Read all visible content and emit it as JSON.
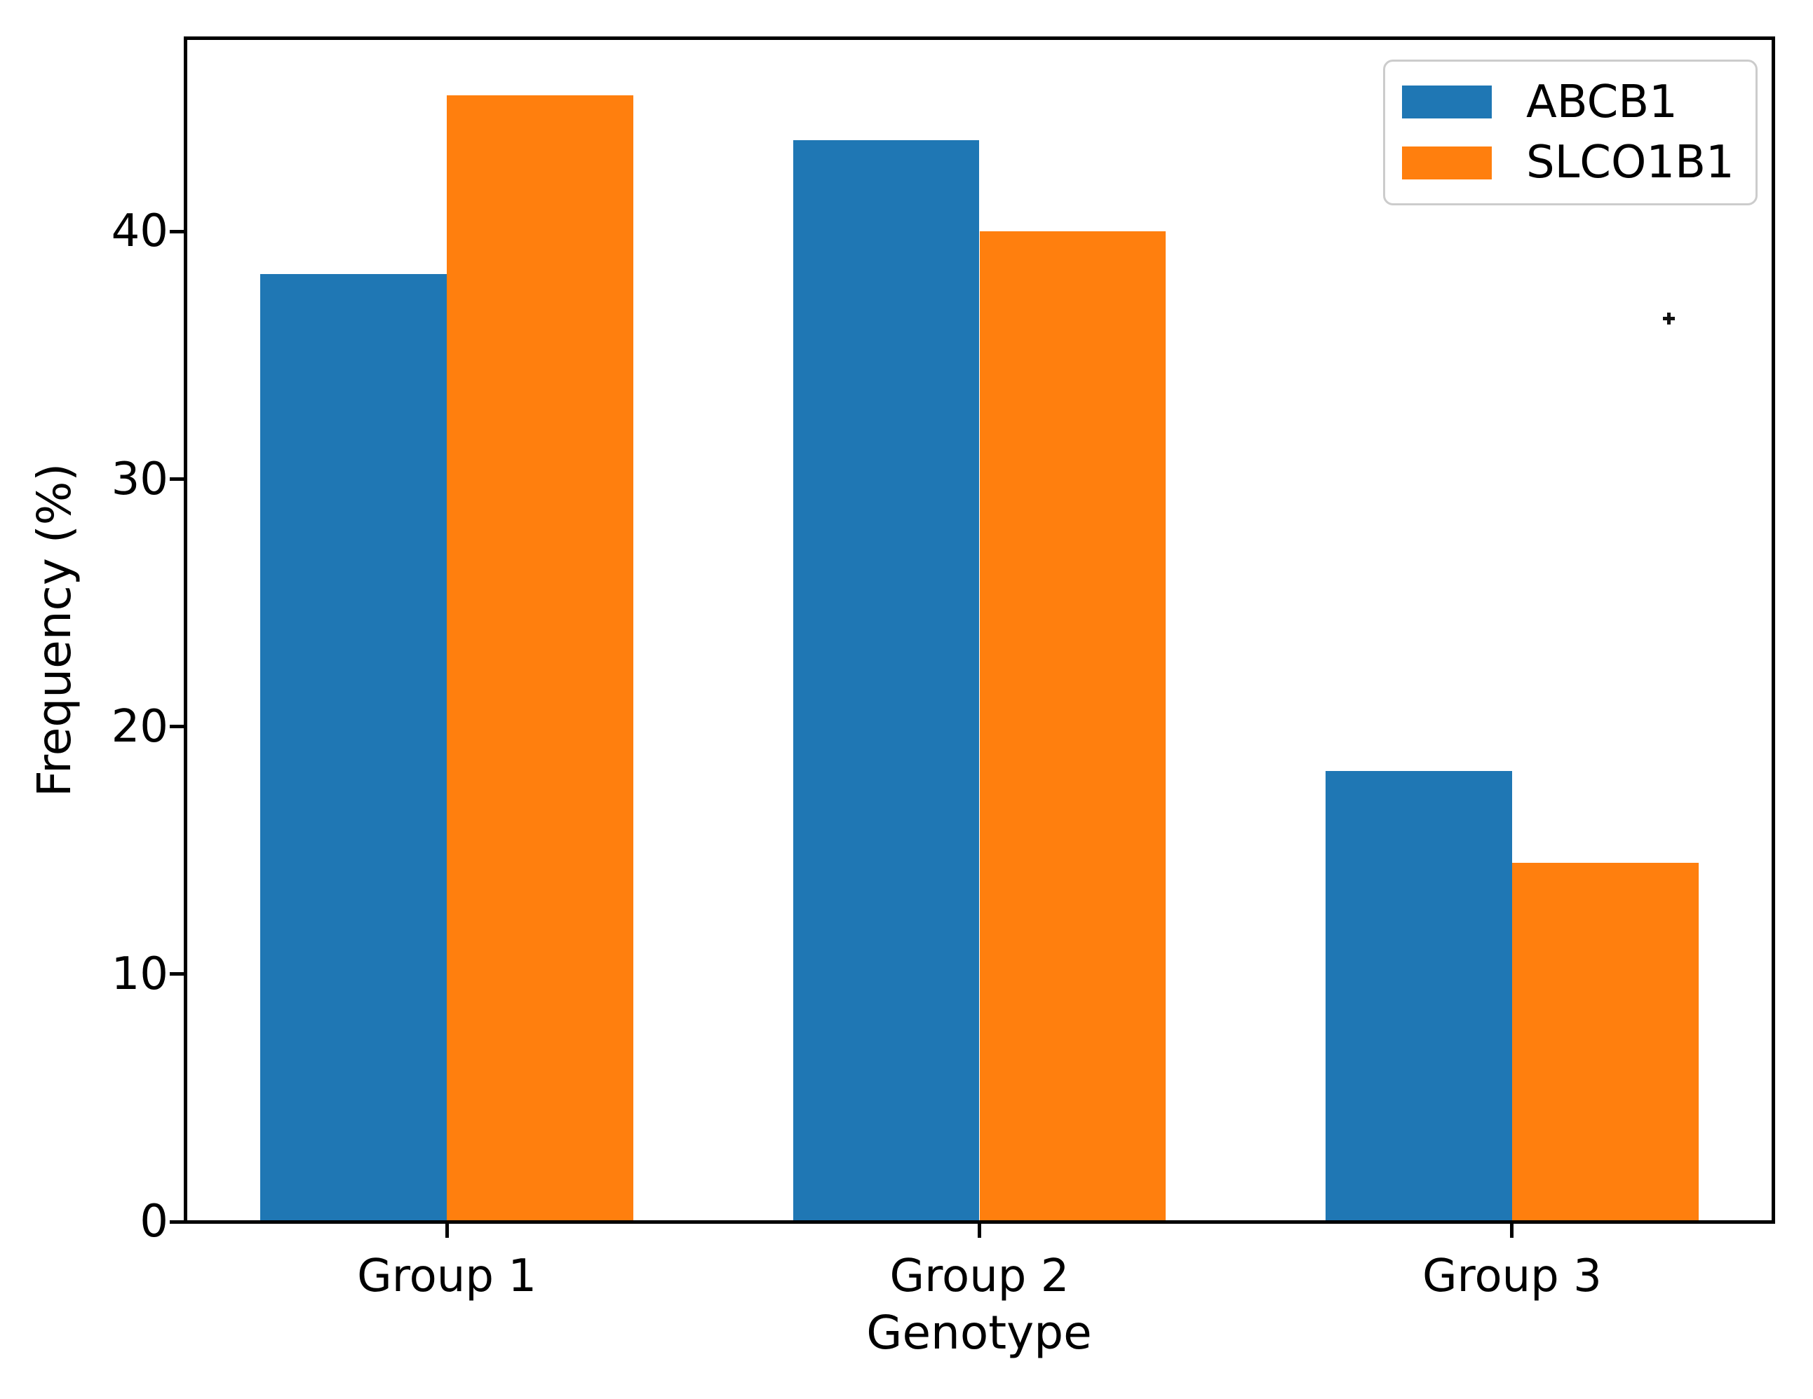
{
  "chart_data": {
    "type": "bar",
    "title": "",
    "xlabel": "Genotype",
    "ylabel": "Frequency (%)",
    "categories": [
      "Group 1",
      "Group 2",
      "Group 3"
    ],
    "series": [
      {
        "name": "ABCB1",
        "color": "#1f77b4",
        "values": [
          38.3,
          43.7,
          18.2
        ]
      },
      {
        "name": "SLCO1B1",
        "color": "#ff7f0e",
        "values": [
          45.5,
          40.0,
          14.5
        ]
      }
    ],
    "yticks": [
      0,
      10,
      20,
      30,
      40
    ],
    "ylim": [
      0,
      47.8
    ],
    "xlim": [
      -0.49,
      2.49
    ],
    "bar_width": 0.35,
    "grid": "off",
    "legend_position": "upper right",
    "stray_marker": {
      "x": 2.295,
      "y": 36.5,
      "symbol": "+"
    }
  }
}
